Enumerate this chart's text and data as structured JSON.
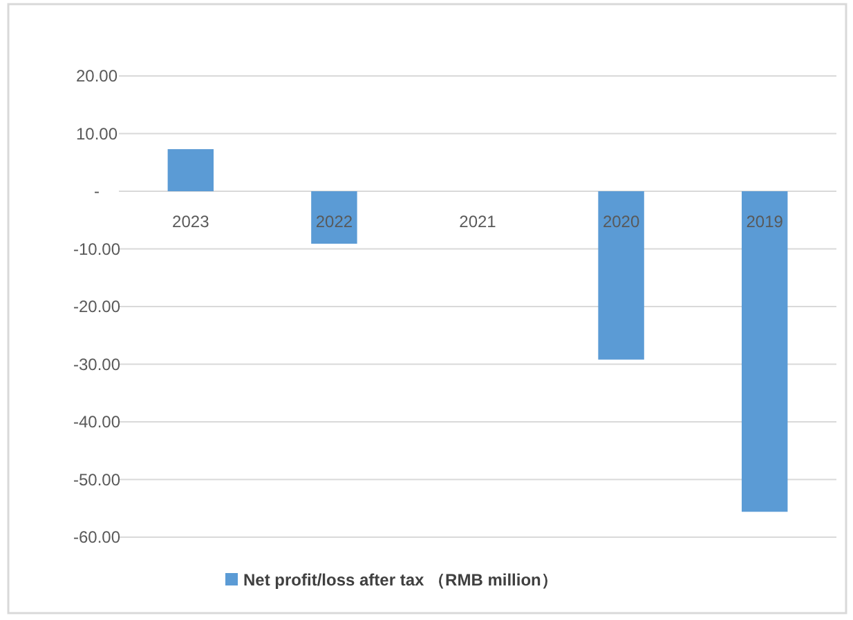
{
  "chart_data": {
    "type": "bar",
    "categories": [
      "2023",
      "2022",
      "2021",
      "2020",
      "2019"
    ],
    "series": [
      {
        "name": "Net profit/loss after tax （RMB million）",
        "color": "#5b9bd5",
        "values": [
          7.3,
          -9.1,
          0,
          -29.2,
          -55.6
        ]
      }
    ],
    "ylim": [
      -60,
      20
    ],
    "yticks": [
      {
        "value": -60,
        "label": "-60.00"
      },
      {
        "value": -50,
        "label": "-50.00"
      },
      {
        "value": -40,
        "label": "-40.00"
      },
      {
        "value": -30,
        "label": "-30.00"
      },
      {
        "value": -20,
        "label": "-20.00"
      },
      {
        "value": -10,
        "label": "-10.00"
      },
      {
        "value": 0,
        "label": "-"
      },
      {
        "value": 10,
        "label": "10.00"
      },
      {
        "value": 20,
        "label": "20.00"
      }
    ],
    "grid": "y",
    "legend": "bottom"
  }
}
